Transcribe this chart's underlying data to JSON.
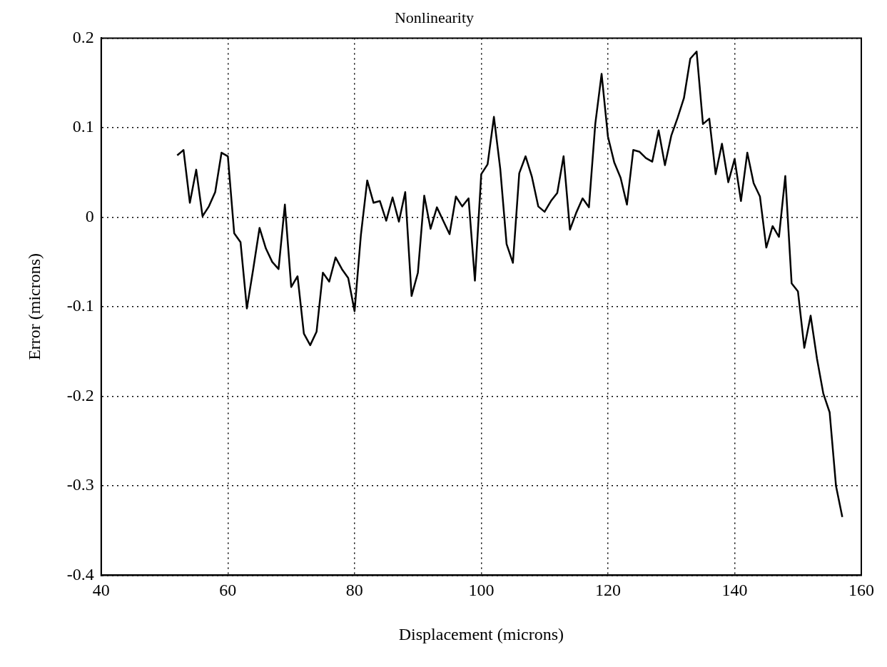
{
  "chart_data": {
    "type": "line",
    "title": "Nonlinearity",
    "xlabel": "Displacement (microns)",
    "ylabel": "Error (microns)",
    "x": [
      52,
      53,
      54,
      55,
      56,
      57,
      58,
      59,
      60,
      61,
      62,
      63,
      64,
      65,
      66,
      67,
      68,
      69,
      70,
      71,
      72,
      73,
      74,
      75,
      76,
      77,
      78,
      79,
      80,
      81,
      82,
      83,
      84,
      85,
      86,
      87,
      88,
      89,
      90,
      91,
      92,
      93,
      94,
      95,
      96,
      97,
      98,
      99,
      100,
      101,
      102,
      103,
      104,
      105,
      106,
      107,
      108,
      109,
      110,
      111,
      112,
      113,
      114,
      115,
      116,
      117,
      118,
      119,
      120,
      121,
      122,
      123,
      124,
      125,
      126,
      127,
      128,
      129,
      130,
      131,
      132,
      133,
      134,
      135,
      136,
      137,
      138,
      139,
      140,
      141,
      142,
      143,
      144,
      145,
      146,
      147,
      148,
      149,
      150,
      151,
      152,
      153,
      154,
      155,
      156,
      157
    ],
    "series": [
      {
        "color": "#000000",
        "values": [
          0.069,
          0.075,
          0.016,
          0.053,
          0.001,
          0.012,
          0.028,
          0.072,
          0.068,
          -0.018,
          -0.028,
          -0.102,
          -0.058,
          -0.012,
          -0.035,
          -0.05,
          -0.058,
          0.014,
          -0.078,
          -0.066,
          -0.13,
          -0.143,
          -0.128,
          -0.062,
          -0.072,
          -0.045,
          -0.058,
          -0.068,
          -0.105,
          -0.02,
          0.041,
          0.016,
          0.018,
          -0.004,
          0.022,
          -0.005,
          0.028,
          -0.088,
          -0.062,
          0.024,
          -0.013,
          0.011,
          -0.004,
          -0.019,
          0.023,
          0.012,
          0.021,
          -0.071,
          0.048,
          0.059,
          0.112,
          0.054,
          -0.03,
          -0.051,
          0.049,
          0.068,
          0.045,
          0.012,
          0.006,
          0.018,
          0.027,
          0.068,
          -0.014,
          0.005,
          0.021,
          0.011,
          0.104,
          0.16,
          0.09,
          0.061,
          0.044,
          0.014,
          0.075,
          0.073,
          0.066,
          0.062,
          0.097,
          0.058,
          0.091,
          0.111,
          0.133,
          0.177,
          0.185,
          0.104,
          0.11,
          0.048,
          0.082,
          0.039,
          0.065,
          0.018,
          0.072,
          0.038,
          0.023,
          -0.034,
          -0.01,
          -0.022,
          0.046,
          -0.074,
          -0.083,
          -0.146,
          -0.11,
          -0.158,
          -0.197,
          -0.218,
          -0.3,
          -0.335
        ]
      }
    ],
    "xlim": [
      40,
      160
    ],
    "xticks": [
      40,
      60,
      80,
      100,
      120,
      140,
      160
    ],
    "ylim": [
      -0.4,
      0.2
    ],
    "yticks": [
      -0.4,
      -0.3,
      -0.2,
      -0.1,
      0,
      0.1,
      0.2
    ],
    "grid": true,
    "legend": false,
    "marker": "none",
    "line_style": "solid"
  }
}
